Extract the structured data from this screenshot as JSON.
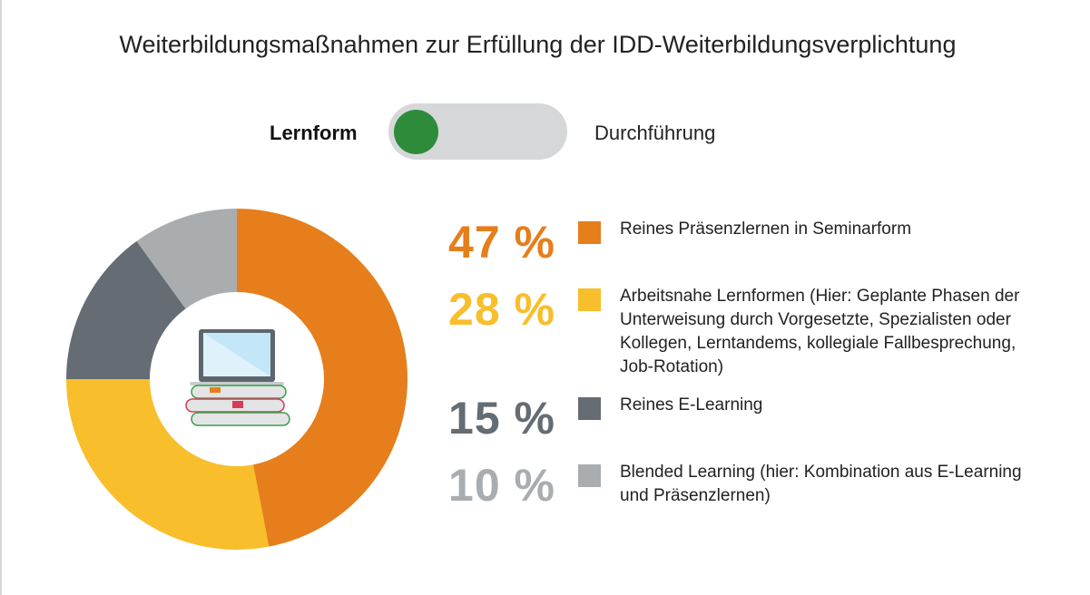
{
  "title": "Weiterbildungsmaßnahmen zur Erfüllung der IDD-Weiterbildungsverplichtung",
  "toggle": {
    "left_label": "Lernform",
    "right_label": "Durchführung",
    "selected": "Lernform",
    "knob_color": "#2e8b3a"
  },
  "chart_data": {
    "type": "pie",
    "donut": true,
    "center_icon": "laptop-on-books-icon",
    "slices": [
      {
        "label": "Reines Präsenzlernen in Seminarform",
        "value": 47,
        "value_label": "47 %",
        "color": "#e67e1c"
      },
      {
        "label": "Arbeitsnahe Lernformen (Hier: Geplante Phasen der Unterweisung durch Vorgesetzte, Spezialisten oder Kollegen, Lerntandems, kollegiale Fallbesprechung, Job-Rotation)",
        "value": 28,
        "value_label": "28 %",
        "color": "#f8be2b"
      },
      {
        "label": "Reines E-Learning",
        "value": 15,
        "value_label": "15 %",
        "color": "#656c73"
      },
      {
        "label": "Blended Learning (hier: Kombination aus E-Learning und Präsenzlernen)",
        "value": 10,
        "value_label": "10 %",
        "color": "#a9adb0"
      }
    ],
    "legend": "right"
  }
}
